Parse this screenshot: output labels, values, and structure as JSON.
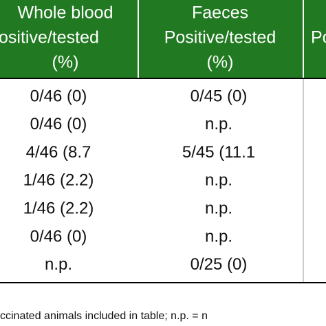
{
  "header": {
    "columns": [
      [
        "Whole blood",
        "ositive/tested",
        "(%)"
      ],
      [
        "Faeces",
        "Positive/tested",
        "(%)"
      ],
      [
        "Po"
      ]
    ]
  },
  "table": {
    "rows": [
      [
        "0/46 (0)",
        "0/45 (0)"
      ],
      [
        "0/46 (0)",
        "n.p."
      ],
      [
        "4/46 (8.7",
        "5/45 (11.1"
      ],
      [
        "1/46 (2.2)",
        "n.p."
      ],
      [
        "1/46 (2.2)",
        "n.p."
      ],
      [
        "0/46 (0)",
        "n.p."
      ],
      [
        "n.p.",
        "0/25 (0)"
      ]
    ]
  },
  "footer": "ccinated animals included in table; n.p. = n"
}
